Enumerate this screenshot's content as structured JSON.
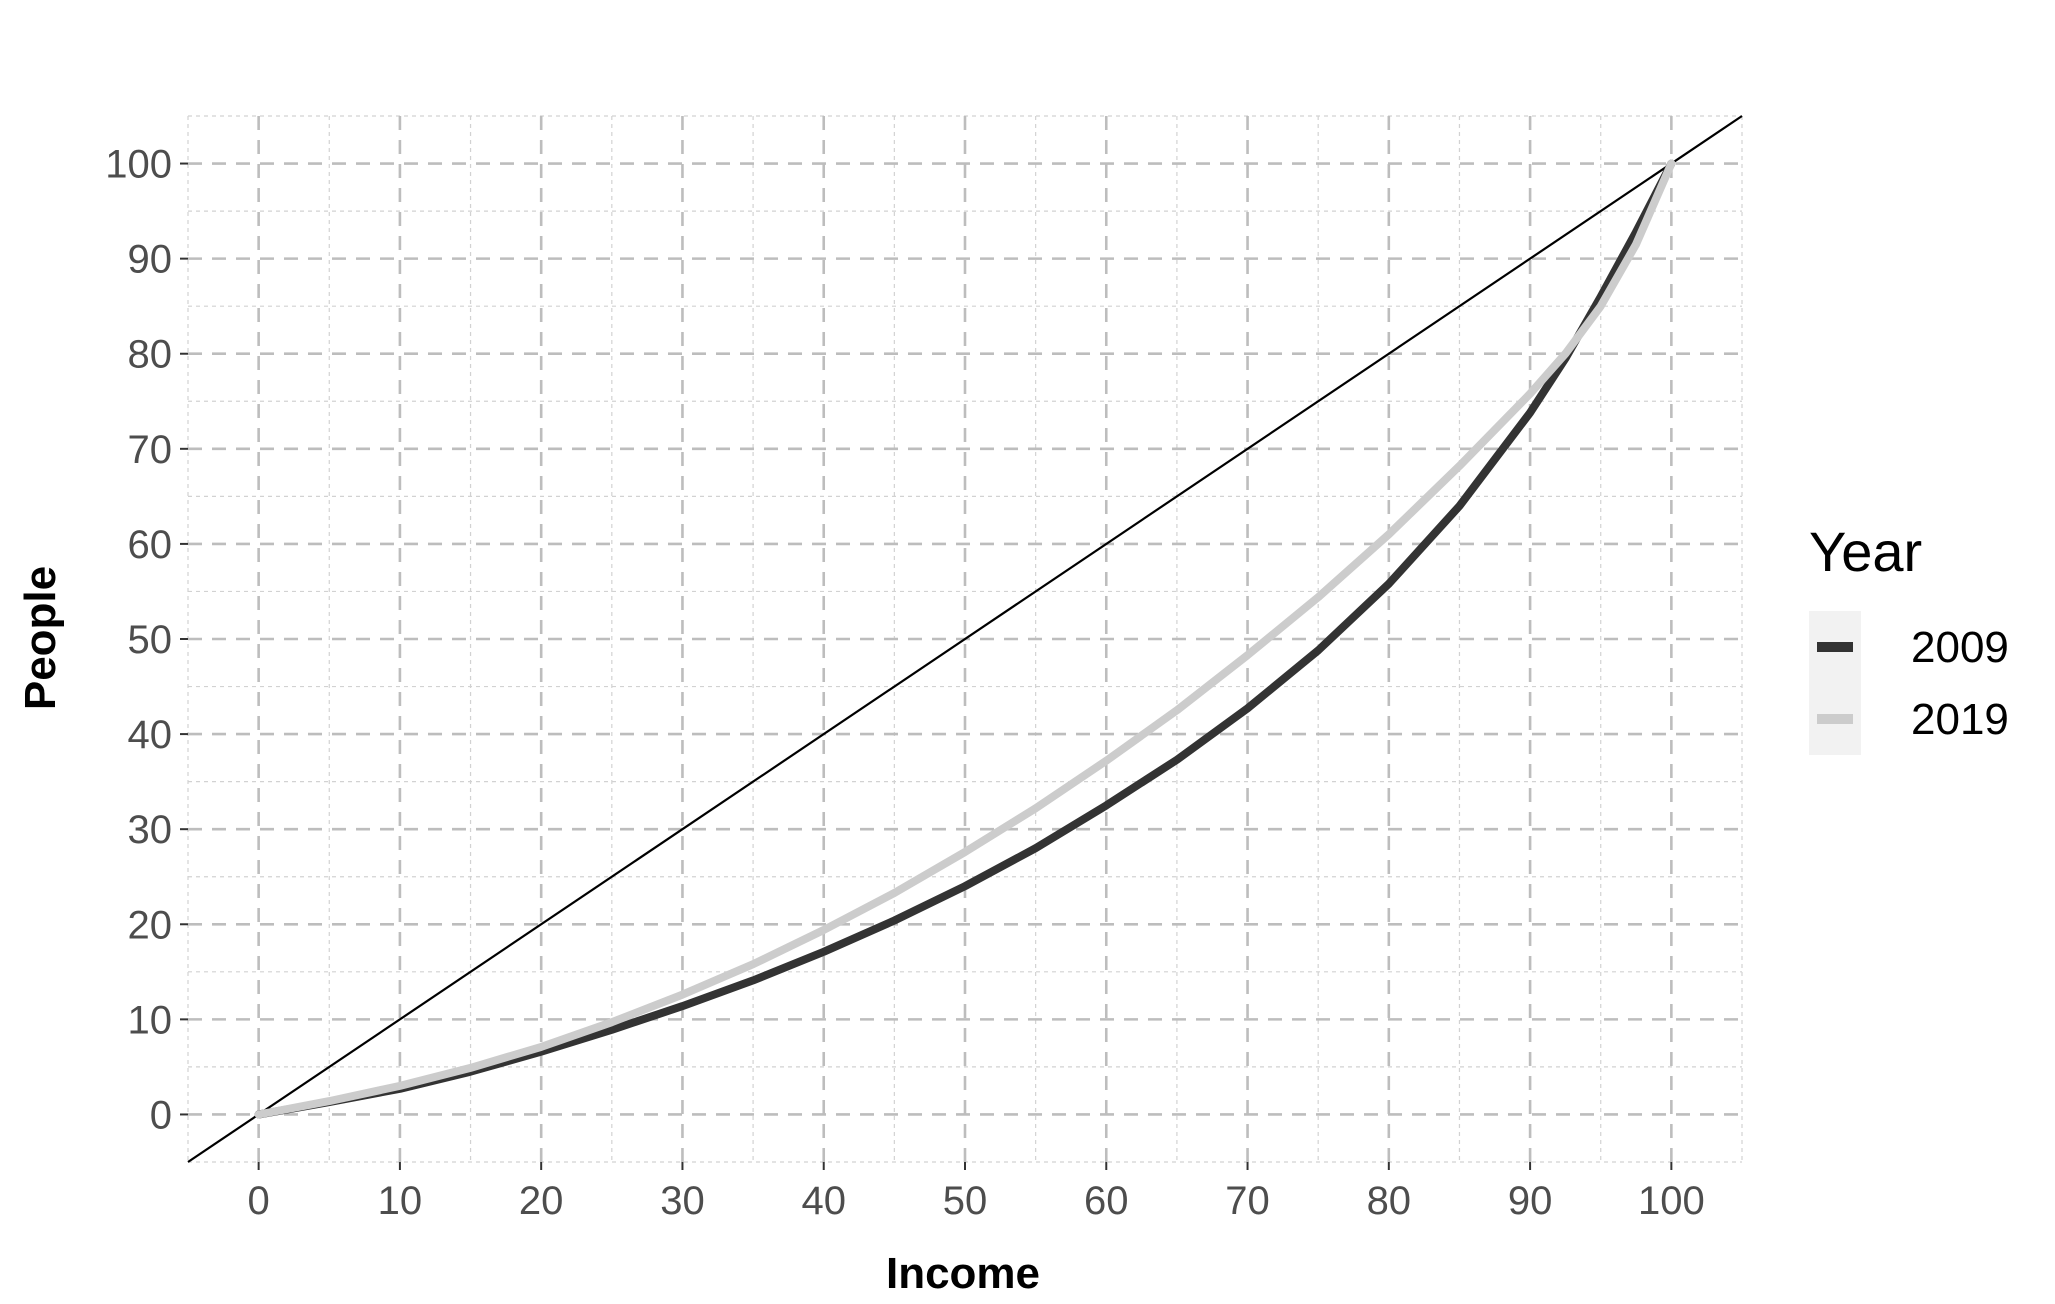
{
  "chart_data": {
    "type": "line",
    "title": "",
    "xlabel": "Income",
    "ylabel": "People",
    "xlim": [
      -5,
      105
    ],
    "ylim": [
      -5,
      105
    ],
    "x_ticks": [
      0,
      10,
      20,
      30,
      40,
      50,
      60,
      70,
      80,
      90,
      100
    ],
    "y_ticks": [
      0,
      10,
      20,
      30,
      40,
      50,
      60,
      70,
      80,
      90,
      100
    ],
    "grid": true,
    "grid_style": "dashed",
    "reference_line": {
      "x": [
        -5,
        105
      ],
      "y": [
        -5,
        105
      ],
      "color": "#000000"
    },
    "legend": {
      "title": "Year",
      "placement": "right"
    },
    "series": [
      {
        "name": "2009",
        "color": "#333333",
        "x": [
          0,
          5,
          10,
          15,
          20,
          25,
          30,
          35,
          40,
          45,
          50,
          55,
          60,
          65,
          70,
          75,
          80,
          85,
          90,
          92.5,
          95,
          97.5,
          100
        ],
        "y": [
          0,
          1.3,
          2.7,
          4.5,
          6.6,
          8.9,
          11.4,
          14.1,
          17.1,
          20.4,
          24.0,
          28.0,
          32.5,
          37.3,
          42.7,
          48.8,
          55.8,
          64.0,
          73.8,
          79.5,
          86.0,
          92.8,
          100
        ]
      },
      {
        "name": "2019",
        "color": "#cccccc",
        "x": [
          0,
          5,
          10,
          15,
          20,
          25,
          30,
          35,
          40,
          45,
          50,
          55,
          60,
          65,
          70,
          75,
          80,
          85,
          90,
          92.5,
          95,
          97.5,
          100
        ],
        "y": [
          0,
          1.4,
          3.0,
          4.9,
          7.1,
          9.7,
          12.6,
          15.8,
          19.4,
          23.3,
          27.6,
          32.2,
          37.2,
          42.5,
          48.3,
          54.4,
          61.0,
          68.2,
          75.8,
          80.0,
          85.0,
          91.5,
          100
        ]
      }
    ]
  }
}
